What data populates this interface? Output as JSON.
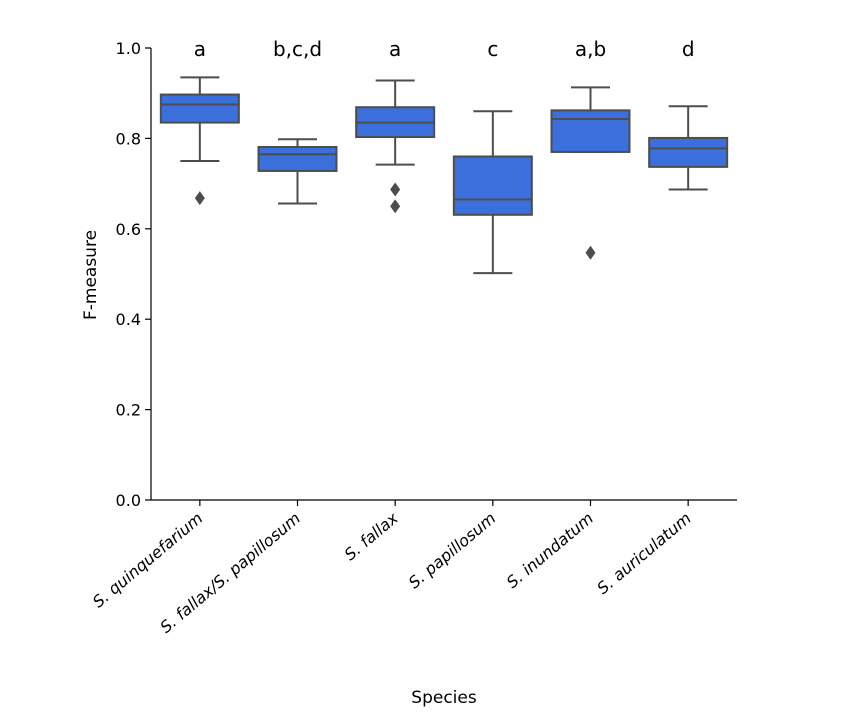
{
  "chart_data": {
    "type": "box",
    "xlabel": "Species",
    "ylabel": "F-measure",
    "ylim": [
      0.0,
      1.0
    ],
    "yticks": [
      "0.0",
      "0.2",
      "0.4",
      "0.6",
      "0.8",
      "1.0"
    ],
    "grid": false,
    "box_color": "#3a6fdc",
    "line_color": "#4d4d4d",
    "categories": [
      "S. quinquefarium",
      "S. fallax/S. papillosum",
      "S. fallax",
      "S. papillosum",
      "S. inundatum",
      "S. auriculatum"
    ],
    "boxes": [
      {
        "whisker_low": 0.75,
        "q1": 0.835,
        "median": 0.875,
        "q3": 0.897,
        "whisker_high": 0.935,
        "outliers": [
          0.668
        ],
        "letter": "a"
      },
      {
        "whisker_low": 0.656,
        "q1": 0.728,
        "median": 0.765,
        "q3": 0.781,
        "whisker_high": 0.798,
        "outliers": [],
        "letter": "b,c,d"
      },
      {
        "whisker_low": 0.742,
        "q1": 0.803,
        "median": 0.835,
        "q3": 0.869,
        "whisker_high": 0.928,
        "outliers": [
          0.687,
          0.65
        ],
        "letter": "a"
      },
      {
        "whisker_low": 0.502,
        "q1": 0.631,
        "median": 0.665,
        "q3": 0.76,
        "whisker_high": 0.86,
        "outliers": [],
        "letter": "c"
      },
      {
        "whisker_low": 0.77,
        "q1": 0.77,
        "median": 0.843,
        "q3": 0.862,
        "whisker_high": 0.913,
        "outliers": [
          0.547
        ],
        "letter": "a,b"
      },
      {
        "whisker_low": 0.687,
        "q1": 0.737,
        "median": 0.778,
        "q3": 0.801,
        "whisker_high": 0.871,
        "outliers": [],
        "letter": "d"
      }
    ]
  }
}
